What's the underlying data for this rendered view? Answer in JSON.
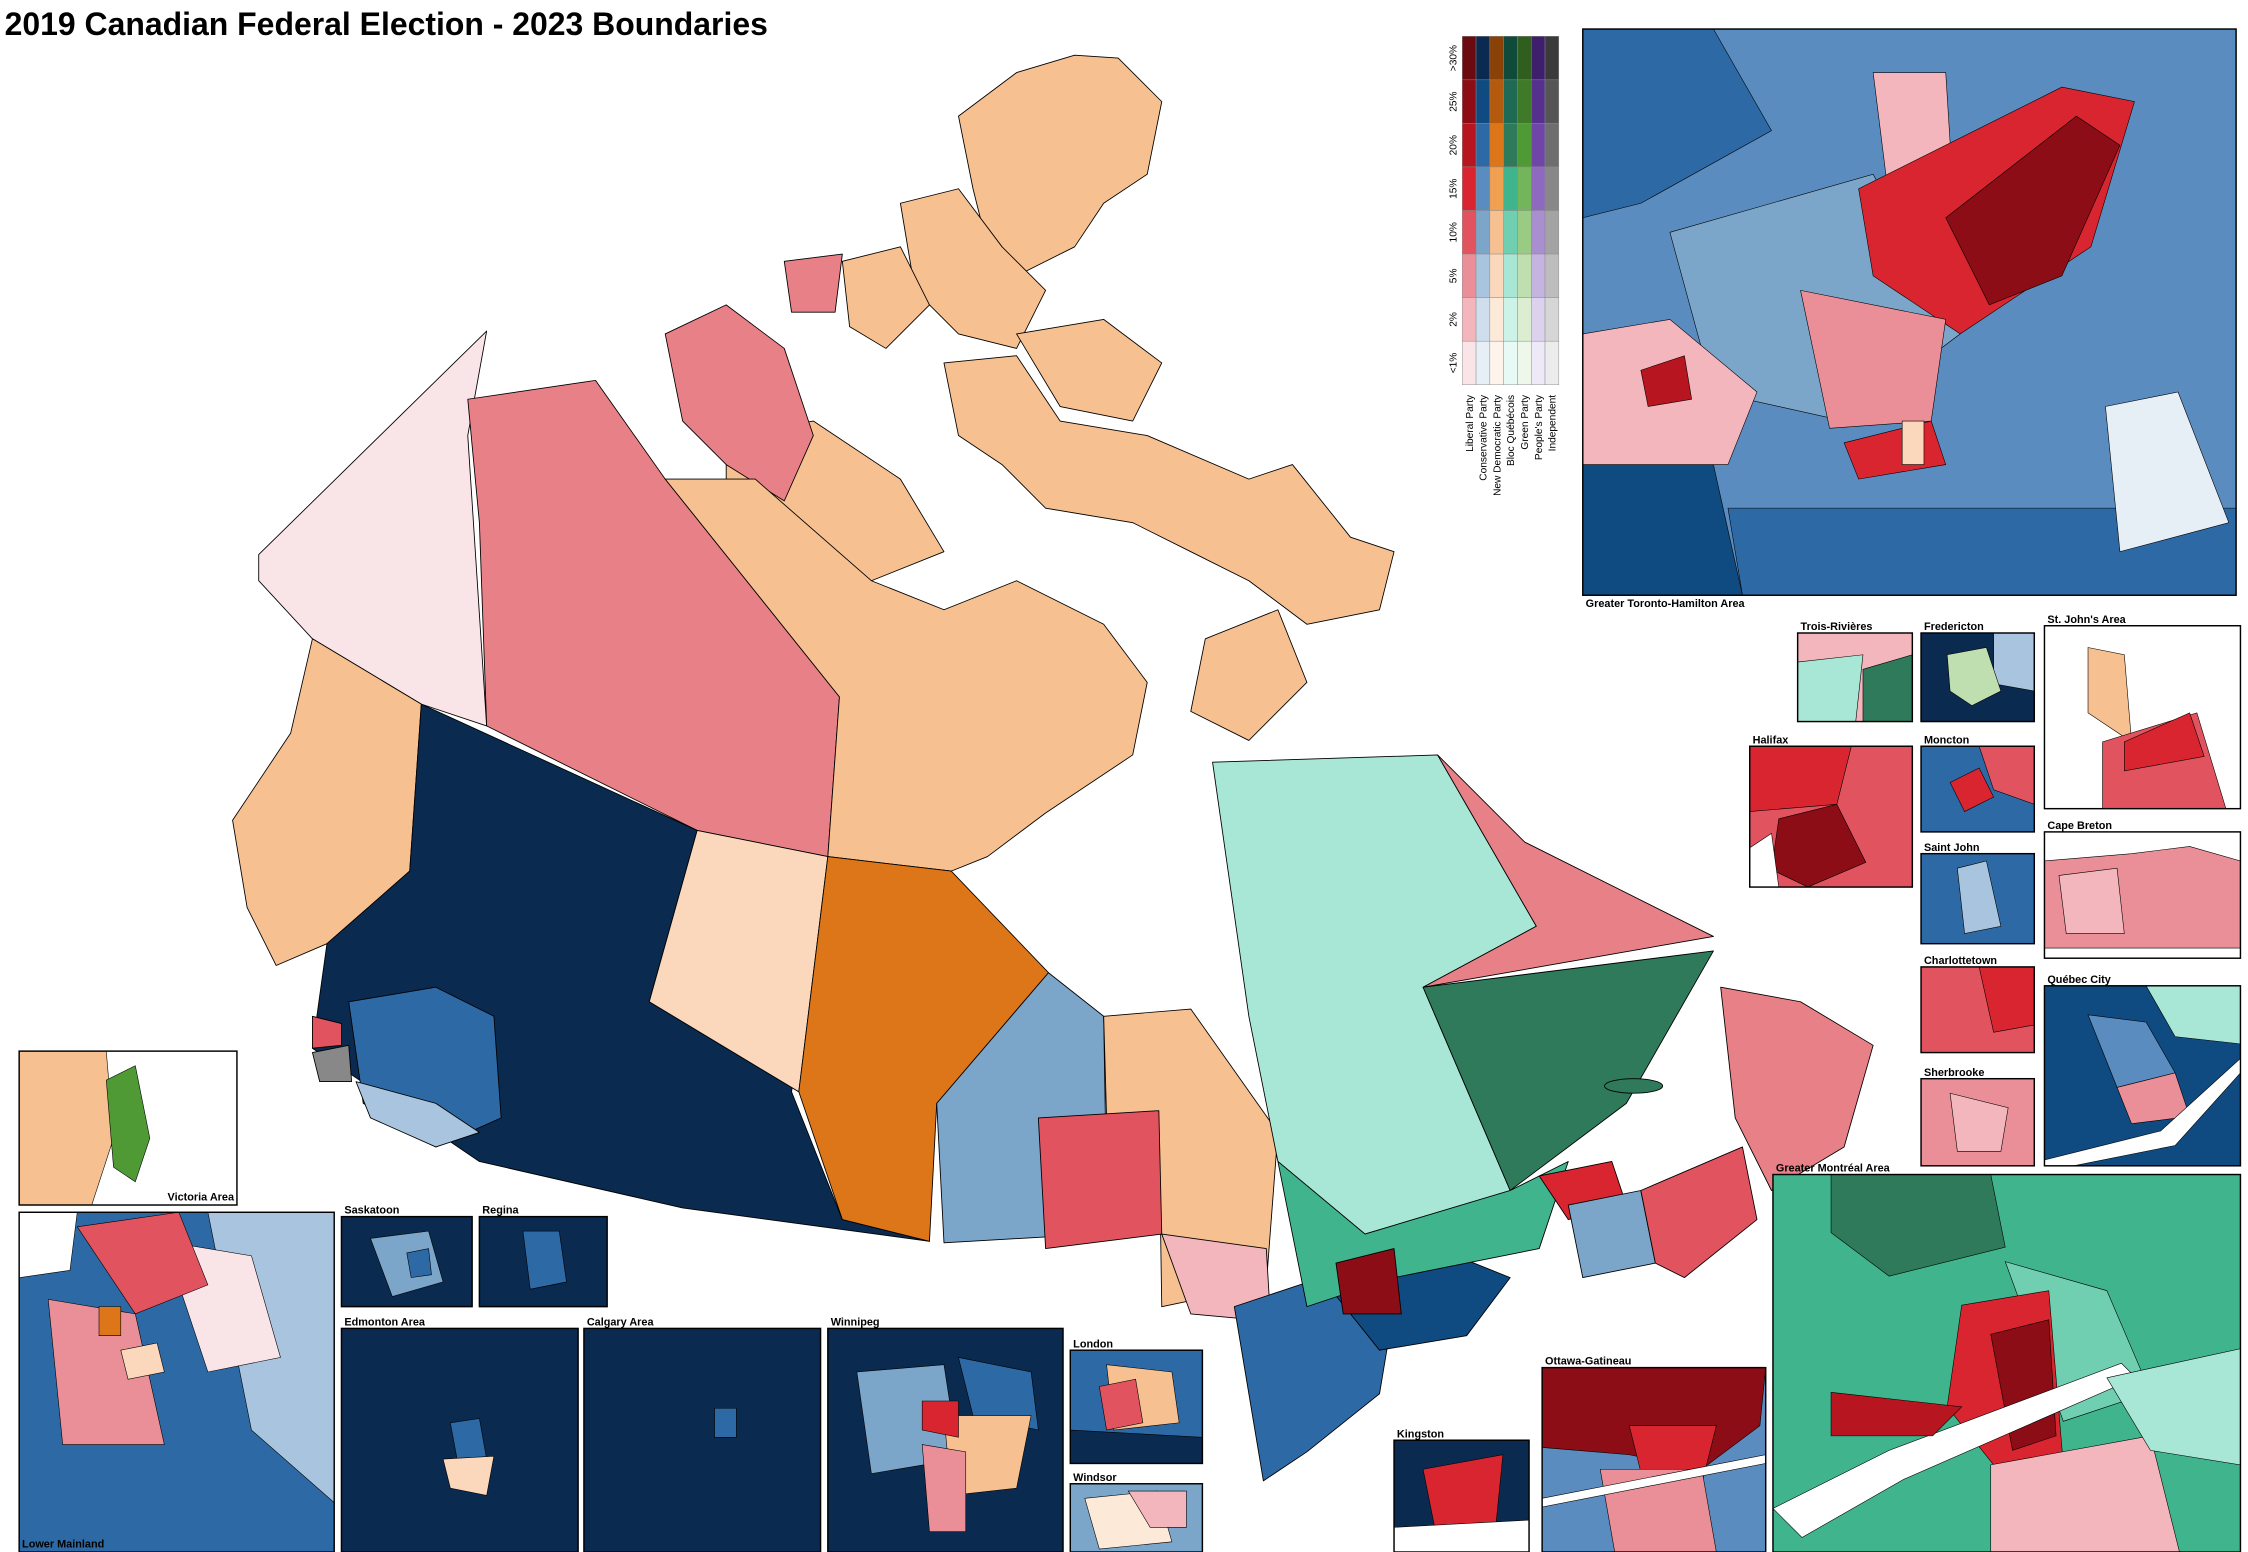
{
  "title": "2019 Canadian Federal Election - 2023 Boundaries",
  "legend": {
    "thresholds": [
      ">30%",
      "25%",
      "20%",
      "15%",
      "10%",
      "5%",
      "2%",
      "<1%"
    ],
    "parties": [
      {
        "name": "Liberal Party",
        "colors": [
          "#6b0a10",
          "#8c0d16",
          "#b71520",
          "#d9252f",
          "#e0535f",
          "#ea8f97",
          "#f4b6bd",
          "#f9e4e8"
        ]
      },
      {
        "name": "Conservative Party",
        "colors": [
          "#0a2a4f",
          "#0f4a80",
          "#2d6aa5",
          "#5a8cbf",
          "#7ba5c9",
          "#a9c4de",
          "#cfdeed",
          "#e6eef6"
        ]
      },
      {
        "name": "New Democratic Party",
        "colors": [
          "#8a4107",
          "#b45a0e",
          "#dd7519",
          "#f0a050",
          "#f6c090",
          "#fbd8bb",
          "#fde9d8",
          "#fef4ec"
        ]
      },
      {
        "name": "Bloc Québécois",
        "colors": [
          "#0f4a3a",
          "#1f6a55",
          "#2e7a5a",
          "#40b48c",
          "#6fcfb0",
          "#a8e6d6",
          "#cdf2e8",
          "#e8faf5"
        ]
      },
      {
        "name": "Green Party",
        "colors": [
          "#2f5e1e",
          "#3e7a28",
          "#4f9a35",
          "#73b55a",
          "#9acb85",
          "#bfdfb0",
          "#dbeed2",
          "#eef7ea"
        ]
      },
      {
        "name": "People's Party",
        "colors": [
          "#3e1f6b",
          "#55308c",
          "#6f45a8",
          "#8d6ac0",
          "#a98fd0",
          "#c5b4e0",
          "#ddd2ee",
          "#eee9f6"
        ]
      },
      {
        "name": "Independent",
        "colors": [
          "#3a3a3a",
          "#555555",
          "#6e6e6e",
          "#888888",
          "#a3a3a3",
          "#bdbdbd",
          "#d6d6d6",
          "#ececec"
        ]
      }
    ]
  },
  "insets": [
    {
      "label": "Greater Toronto-Hamilton Area"
    },
    {
      "label": "Trois-Rivières"
    },
    {
      "label": "Fredericton"
    },
    {
      "label": "St. John's Area"
    },
    {
      "label": "Halifax"
    },
    {
      "label": "Moncton"
    },
    {
      "label": "Saint John"
    },
    {
      "label": "Cape Breton"
    },
    {
      "label": "Charlottetown"
    },
    {
      "label": "Québec City"
    },
    {
      "label": "Sherbrooke"
    },
    {
      "label": "Greater Montréal Area"
    },
    {
      "label": "Victoria Area"
    },
    {
      "label": "Lower Mainland"
    },
    {
      "label": "Saskatoon"
    },
    {
      "label": "Regina"
    },
    {
      "label": "Edmonton Area"
    },
    {
      "label": "Calgary Area"
    },
    {
      "label": "Winnipeg"
    },
    {
      "label": "London"
    },
    {
      "label": "Windsor"
    },
    {
      "label": "Kingston"
    },
    {
      "label": "Ottawa-Gatineau"
    }
  ]
}
